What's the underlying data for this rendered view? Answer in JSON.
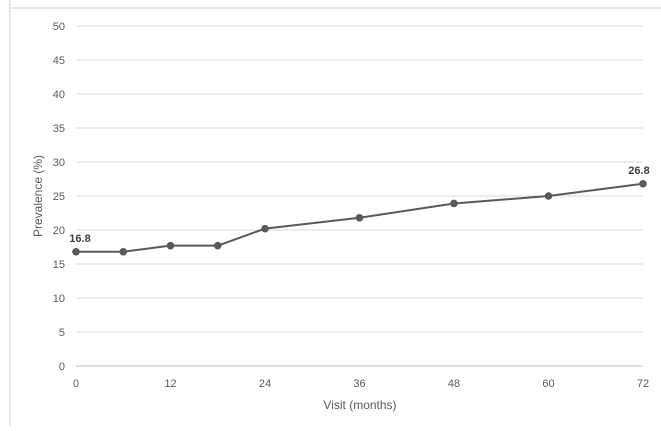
{
  "chart_data": {
    "type": "line",
    "title": "",
    "xlabel": "Visit (months)",
    "ylabel": "Prevalence (%)",
    "xlim": [
      0,
      72
    ],
    "ylim": [
      0,
      50
    ],
    "x_ticks": [
      0,
      12,
      24,
      36,
      48,
      60,
      72
    ],
    "y_ticks": [
      0,
      5,
      10,
      15,
      20,
      25,
      30,
      35,
      40,
      45,
      50
    ],
    "grid": true,
    "legend": "none",
    "series": [
      {
        "color": "#595959",
        "x": [
          0,
          6,
          12,
          18,
          24,
          36,
          48,
          60,
          72
        ],
        "y": [
          16.8,
          16.8,
          17.7,
          17.7,
          20.2,
          21.8,
          23.9,
          25.0,
          26.8
        ]
      }
    ],
    "annotations": [
      {
        "x": 0,
        "y": 16.8,
        "text": "16.8"
      },
      {
        "x": 72,
        "y": 26.8,
        "text": "26.8"
      }
    ]
  }
}
